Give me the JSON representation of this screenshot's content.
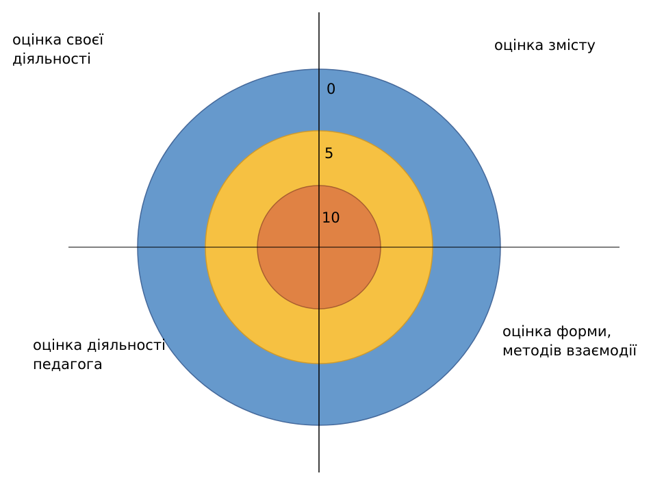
{
  "colors": {
    "outer_ring": "#6699CC",
    "middle_ring": "#F6C142",
    "inner_ring": "#E08244",
    "axes": "#000000"
  },
  "quadrants": {
    "top_left": [
      "оцінка своєї",
      "діяльності"
    ],
    "top_right": [
      "оцінка змісту"
    ],
    "bottom_left": [
      "оцінка діяльності",
      "педагога"
    ],
    "bottom_right": [
      "оцінка форми,",
      "методів взаємодії"
    ]
  },
  "scale": {
    "outer": "0",
    "middle": "5",
    "inner": "10"
  }
}
